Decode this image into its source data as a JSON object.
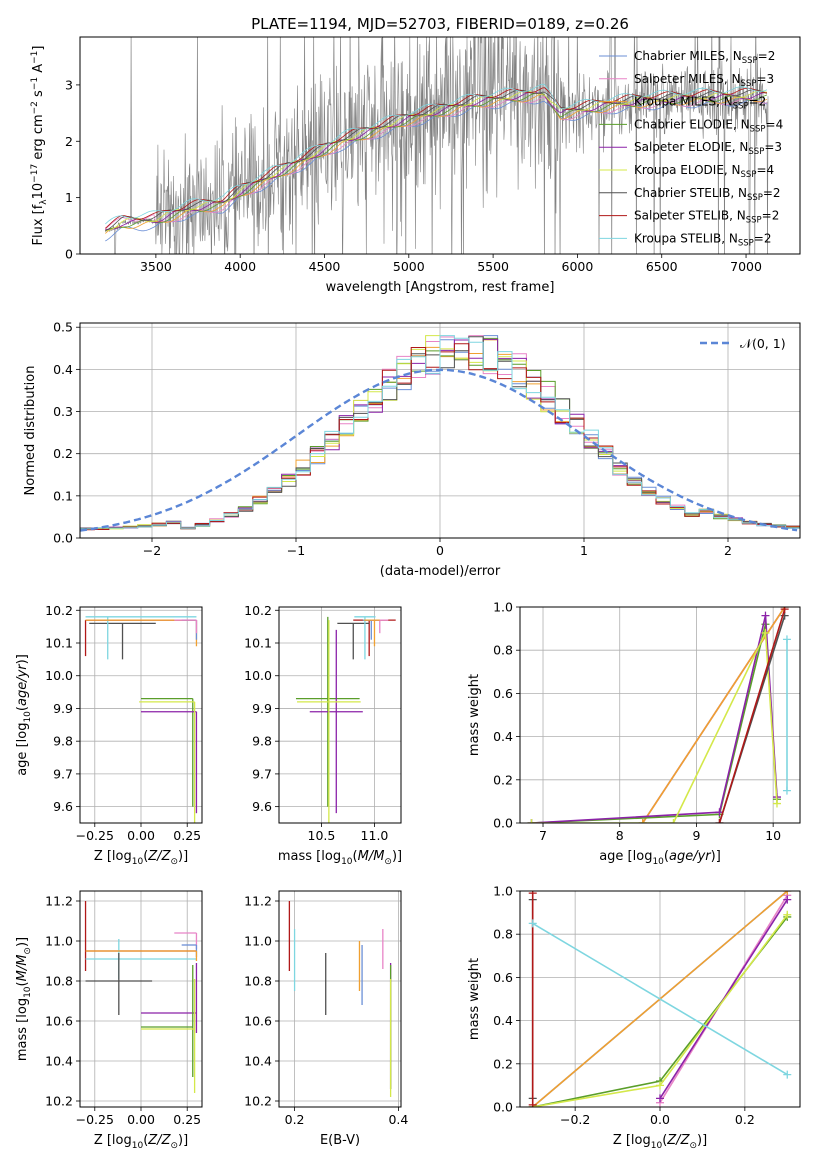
{
  "figure": {
    "title": "PLATE=1194, MJD=52703, FIBERID=0189, z=0.26"
  },
  "colors": {
    "Chabrier MILES": "#6b8fd6",
    "Salpeter MILES": "#e884c7",
    "Kroupa MILES": "#f0a030",
    "Chabrier ELODIE": "#5a9e2a",
    "Salpeter ELODIE": "#8b22a8",
    "Kroupa ELODIE": "#d4e84a",
    "Chabrier STELIB": "#505050",
    "Salpeter STELIB": "#b01818",
    "Kroupa STELIB": "#7ed6e0",
    "data": "#808080",
    "normal": "#5b86d6",
    "sumline_brown": "#c8763a"
  },
  "chart_data": [
    {
      "id": "spectrum",
      "type": "line",
      "xlabel": "wavelength [Angstrom, rest frame]",
      "ylabel": "Flux [f",
      "xlim": [
        3050,
        7320
      ],
      "ylim": [
        0,
        3.85
      ],
      "xticks": [
        3500,
        4000,
        4500,
        5000,
        5500,
        6000,
        6500,
        7000
      ],
      "yticks": [
        0,
        1,
        2,
        3
      ],
      "legend": {
        "placement": "top-right",
        "entries": [
          {
            "model": "Chabrier MILES",
            "label": "Chabrier MILES, N",
            "n": "=2"
          },
          {
            "model": "Salpeter MILES",
            "label": "Salpeter MILES, N",
            "n": "=3"
          },
          {
            "model": "Kroupa MILES",
            "label": "Kroupa MILES, N",
            "n": "=2"
          },
          {
            "model": "Chabrier ELODIE",
            "label": "Chabrier ELODIE, N",
            "n": "=4"
          },
          {
            "model": "Salpeter ELODIE",
            "label": "Salpeter ELODIE, N",
            "n": "=3"
          },
          {
            "model": "Kroupa ELODIE",
            "label": "Kroupa ELODIE, N",
            "n": "=4"
          },
          {
            "model": "Chabrier STELIB",
            "label": "Chabrier STELIB, N",
            "n": "=2"
          },
          {
            "model": "Salpeter STELIB",
            "label": "Salpeter STELIB, N",
            "n": "=2"
          },
          {
            "model": "Kroupa STELIB",
            "label": "Kroupa STELIB, N",
            "n": "=2"
          }
        ]
      },
      "continuum_knots": [
        [
          3200,
          0.4
        ],
        [
          3300,
          0.55
        ],
        [
          3500,
          0.6
        ],
        [
          3700,
          0.8
        ],
        [
          3900,
          0.9
        ],
        [
          4000,
          1.1
        ],
        [
          4200,
          1.4
        ],
        [
          4400,
          1.7
        ],
        [
          4600,
          2.0
        ],
        [
          4800,
          2.2
        ],
        [
          5000,
          2.4
        ],
        [
          5200,
          2.55
        ],
        [
          5400,
          2.7
        ],
        [
          5600,
          2.78
        ],
        [
          5800,
          2.85
        ],
        [
          5900,
          2.5
        ],
        [
          6000,
          2.55
        ],
        [
          6200,
          2.65
        ],
        [
          6400,
          2.72
        ],
        [
          6600,
          2.75
        ],
        [
          6800,
          2.78
        ],
        [
          7000,
          2.8
        ],
        [
          7130,
          2.82
        ]
      ],
      "grid": false
    },
    {
      "id": "residuals",
      "type": "histogram",
      "xlabel": "(data-model)/error",
      "ylabel": "Normed distribution",
      "xlim": [
        -2.5,
        2.5
      ],
      "ylim": [
        0,
        0.51
      ],
      "xticks": [
        -2,
        -1,
        0,
        1,
        2
      ],
      "yticks": [
        0,
        0.1,
        0.2,
        0.3,
        0.4,
        0.5
      ],
      "bin_width": 0.1,
      "legend": {
        "placement": "top-right",
        "label": "𝒩(0, 1)"
      },
      "normal_curve": {
        "mean": 0,
        "sigma": 1
      },
      "grid": true
    },
    {
      "id": "age_vs_Z",
      "type": "errorbar",
      "xlabel": "Z [log",
      "ylabel": "age  [log",
      "xlim": [
        -0.33,
        0.33
      ],
      "ylim": [
        9.55,
        10.21
      ],
      "xticks": [
        -0.25,
        0,
        0.25
      ],
      "yticks": [
        9.6,
        9.7,
        9.8,
        9.9,
        10.0,
        10.1,
        10.2
      ],
      "points": [
        {
          "model": "Salpeter STELIB",
          "x": -0.3,
          "y": 10.17,
          "xerr": [
            0.0,
            0.6
          ],
          "yerr": [
            0.11,
            0.0
          ]
        },
        {
          "model": "Chabrier STELIB",
          "x": -0.1,
          "y": 10.16,
          "xerr": [
            0.18,
            0.18
          ],
          "yerr": [
            0.11,
            0.0
          ]
        },
        {
          "model": "Kroupa STELIB",
          "x": -0.18,
          "y": 10.18,
          "xerr": [
            0.12,
            0.48
          ],
          "yerr": [
            0.13,
            0.0
          ]
        },
        {
          "model": "Kroupa MILES",
          "x": 0.3,
          "y": 10.17,
          "xerr": [
            0.6,
            0.0
          ],
          "yerr": [
            0.08,
            0.0
          ]
        },
        {
          "model": "Chabrier MILES",
          "x": 0.3,
          "y": 10.17,
          "xerr": [
            0.08,
            0.0
          ],
          "yerr": [
            0.06,
            0.0
          ]
        },
        {
          "model": "Salpeter MILES",
          "x": 0.3,
          "y": 10.17,
          "xerr": [
            0.12,
            0.0
          ],
          "yerr": [
            0.04,
            0.0
          ]
        },
        {
          "model": "Chabrier ELODIE",
          "x": 0.28,
          "y": 9.93,
          "xerr": [
            0.28,
            0.0
          ],
          "yerr": [
            0.33,
            0.0
          ]
        },
        {
          "model": "Salpeter ELODIE",
          "x": 0.3,
          "y": 9.89,
          "xerr": [
            0.3,
            0.0
          ],
          "yerr": [
            0.31,
            0.0
          ]
        },
        {
          "model": "Kroupa ELODIE",
          "x": 0.29,
          "y": 9.92,
          "xerr": [
            0.3,
            0.0
          ],
          "yerr": [
            0.38,
            0.0
          ]
        }
      ],
      "grid": true
    },
    {
      "id": "age_vs_mass",
      "type": "errorbar",
      "xlabel": "mass [log",
      "ylabel": "",
      "xlim": [
        10.1,
        11.25
      ],
      "ylim": [
        9.55,
        10.21
      ],
      "xticks": [
        10.5,
        11.0
      ],
      "yticks": [
        9.6,
        9.7,
        9.8,
        9.9,
        10.0,
        10.1,
        10.2
      ],
      "points": [
        {
          "model": "Salpeter STELIB",
          "x": 10.95,
          "y": 10.17,
          "xerr": [
            0.15,
            0.25
          ],
          "yerr": [
            0.11,
            0.0
          ]
        },
        {
          "model": "Chabrier STELIB",
          "x": 10.8,
          "y": 10.16,
          "xerr": [
            0.15,
            0.15
          ],
          "yerr": [
            0.11,
            0.0
          ]
        },
        {
          "model": "Kroupa STELIB",
          "x": 10.91,
          "y": 10.18,
          "xerr": [
            0.1,
            0.1
          ],
          "yerr": [
            0.13,
            0.0
          ]
        },
        {
          "model": "Chabrier MILES",
          "x": 10.97,
          "y": 10.17,
          "xerr": [
            0.08,
            0.08
          ],
          "yerr": [
            0.06,
            0.0
          ]
        },
        {
          "model": "Salpeter MILES",
          "x": 11.05,
          "y": 10.17,
          "xerr": [
            0.08,
            0.08
          ],
          "yerr": [
            0.04,
            0.0
          ]
        },
        {
          "model": "Kroupa MILES",
          "x": 11.0,
          "y": 10.17,
          "xerr": [
            0.1,
            0.05
          ],
          "yerr": [
            0.08,
            0.0
          ]
        },
        {
          "model": "Chabrier ELODIE",
          "x": 10.56,
          "y": 9.93,
          "xerr": [
            0.3,
            0.3
          ],
          "yerr": [
            0.33,
            0.25
          ]
        },
        {
          "model": "Salpeter ELODIE",
          "x": 10.64,
          "y": 9.89,
          "xerr": [
            0.25,
            0.25
          ],
          "yerr": [
            0.31,
            0.25
          ]
        },
        {
          "model": "Kroupa ELODIE",
          "x": 10.57,
          "y": 9.92,
          "xerr": [
            0.3,
            0.3
          ],
          "yerr": [
            0.38,
            0.25
          ]
        }
      ],
      "grid": true
    },
    {
      "id": "massweight_vs_age",
      "type": "line",
      "xlabel": "age  [log",
      "ylabel": "mass weight",
      "xlim": [
        6.7,
        10.35
      ],
      "ylim": [
        0,
        1.0
      ],
      "xticks": [
        7,
        8,
        9,
        10
      ],
      "yticks": [
        0.0,
        0.2,
        0.4,
        0.6,
        0.8,
        1.0
      ],
      "series": [
        {
          "model": "Chabrier MILES",
          "x": [
            8.3,
            10.15
          ],
          "y": [
            0.0,
            1.0
          ]
        },
        {
          "model": "Salpeter MILES",
          "x": [
            8.3,
            10.15
          ],
          "y": [
            0.0,
            1.0
          ]
        },
        {
          "model": "Kroupa MILES",
          "x": [
            8.3,
            10.15
          ],
          "y": [
            0.0,
            1.0
          ]
        },
        {
          "model": "Chabrier ELODIE",
          "x": [
            6.85,
            9.3,
            9.9,
            10.05
          ],
          "y": [
            0.0,
            0.04,
            0.92,
            0.11
          ]
        },
        {
          "model": "Salpeter ELODIE",
          "x": [
            6.85,
            9.3,
            9.9,
            10.05
          ],
          "y": [
            0.0,
            0.05,
            0.96,
            0.12
          ]
        },
        {
          "model": "Kroupa ELODIE",
          "x": [
            6.85,
            8.7,
            9.9,
            10.05
          ],
          "y": [
            0.0,
            0.0,
            0.88,
            0.09
          ]
        },
        {
          "model": "Chabrier STELIB",
          "x": [
            9.3,
            10.15
          ],
          "y": [
            0.0,
            0.96
          ]
        },
        {
          "model": "Salpeter STELIB",
          "x": [
            9.3,
            10.15
          ],
          "y": [
            0.0,
            0.99
          ]
        },
        {
          "model": "Kroupa STELIB",
          "x": [
            10.18,
            10.18
          ],
          "y": [
            0.15,
            0.85
          ]
        }
      ],
      "grid": true
    },
    {
      "id": "mass_vs_Z",
      "type": "errorbar",
      "xlabel": "Z [log",
      "ylabel": "mass [log",
      "xlim": [
        -0.33,
        0.33
      ],
      "ylim": [
        10.17,
        11.25
      ],
      "xticks": [
        -0.25,
        0,
        0.25
      ],
      "yticks": [
        10.2,
        10.4,
        10.6,
        10.8,
        11.0,
        11.2
      ],
      "points": [
        {
          "model": "Salpeter STELIB",
          "x": -0.3,
          "y": 10.95,
          "xerr": [
            0.0,
            0.6
          ],
          "yerr": [
            0.1,
            0.25
          ]
        },
        {
          "model": "Kroupa STELIB",
          "x": -0.12,
          "y": 10.91,
          "xerr": [
            0.18,
            0.42
          ],
          "yerr": [
            0.1,
            0.1
          ]
        },
        {
          "model": "Chabrier STELIB",
          "x": -0.12,
          "y": 10.8,
          "xerr": [
            0.18,
            0.18
          ],
          "yerr": [
            0.17,
            0.14
          ]
        },
        {
          "model": "Salpeter MILES",
          "x": 0.3,
          "y": 11.04,
          "xerr": [
            0.12,
            0.0
          ],
          "yerr": [
            0.08,
            0.0
          ]
        },
        {
          "model": "Chabrier MILES",
          "x": 0.3,
          "y": 10.98,
          "xerr": [
            0.08,
            0.0
          ],
          "yerr": [
            0.06,
            0.0
          ]
        },
        {
          "model": "Kroupa MILES",
          "x": 0.3,
          "y": 10.95,
          "xerr": [
            0.6,
            0.0
          ],
          "yerr": [
            0.05,
            0.0
          ]
        },
        {
          "model": "Salpeter ELODIE",
          "x": 0.3,
          "y": 10.64,
          "xerr": [
            0.3,
            0.0
          ],
          "yerr": [
            0.1,
            0.25
          ]
        },
        {
          "model": "Chabrier ELODIE",
          "x": 0.28,
          "y": 10.57,
          "xerr": [
            0.28,
            0.0
          ],
          "yerr": [
            0.25,
            0.31
          ]
        },
        {
          "model": "Kroupa ELODIE",
          "x": 0.29,
          "y": 10.56,
          "xerr": [
            0.29,
            0.0
          ],
          "yerr": [
            0.32,
            0.25
          ]
        }
      ],
      "grid": true
    },
    {
      "id": "mass_vs_ebv",
      "type": "errorbar",
      "xlabel": "E(B-V)",
      "ylabel": "",
      "xlim": [
        0.17,
        0.405
      ],
      "ylim": [
        10.17,
        11.25
      ],
      "xticks": [
        0.2,
        0.4
      ],
      "yticks": [
        10.2,
        10.4,
        10.6,
        10.8,
        11.0,
        11.2
      ],
      "points": [
        {
          "model": "Salpeter STELIB",
          "x": 0.19,
          "y": 10.95,
          "xerr": [
            0.0,
            0.0
          ],
          "yerr": [
            0.1,
            0.25
          ]
        },
        {
          "model": "Kroupa STELIB",
          "x": 0.2,
          "y": 10.91,
          "xerr": [
            0.0,
            0.0
          ],
          "yerr": [
            0.16,
            0.15
          ]
        },
        {
          "model": "Chabrier STELIB",
          "x": 0.26,
          "y": 10.8,
          "xerr": [
            0.0,
            0.0
          ],
          "yerr": [
            0.17,
            0.14
          ]
        },
        {
          "model": "Kroupa MILES",
          "x": 0.325,
          "y": 10.95,
          "xerr": [
            0.0,
            0.0
          ],
          "yerr": [
            0.2,
            0.05
          ]
        },
        {
          "model": "Chabrier MILES",
          "x": 0.33,
          "y": 10.85,
          "xerr": [
            0.0,
            0.0
          ],
          "yerr": [
            0.17,
            0.13
          ]
        },
        {
          "model": "Salpeter MILES",
          "x": 0.37,
          "y": 10.98,
          "xerr": [
            0.0,
            0.0
          ],
          "yerr": [
            0.12,
            0.08
          ]
        },
        {
          "model": "Salpeter ELODIE",
          "x": 0.385,
          "y": 10.64,
          "xerr": [
            0.0,
            0.0
          ],
          "yerr": [
            0.38,
            0.25
          ]
        },
        {
          "model": "Chabrier ELODIE",
          "x": 0.385,
          "y": 10.57,
          "xerr": [
            0.0,
            0.0
          ],
          "yerr": [
            0.31,
            0.31
          ]
        },
        {
          "model": "Kroupa ELODIE",
          "x": 0.385,
          "y": 10.56,
          "xerr": [
            0.0,
            0.0
          ],
          "yerr": [
            0.34,
            0.25
          ]
        }
      ],
      "grid": true
    },
    {
      "id": "massweight_vs_Z",
      "type": "line",
      "xlabel": "Z [log",
      "ylabel": "mass weight",
      "xlim": [
        -0.33,
        0.33
      ],
      "ylim": [
        0,
        1.0
      ],
      "xticks": [
        -0.2,
        0.0,
        0.2
      ],
      "yticks": [
        0.0,
        0.2,
        0.4,
        0.6,
        0.8,
        1.0
      ],
      "series": [
        {
          "model": "Chabrier MILES",
          "x": [
            -0.3,
            0.3
          ],
          "y": [
            0.0,
            1.0
          ]
        },
        {
          "model": "Salpeter MILES",
          "x": [
            0.0,
            0.3
          ],
          "y": [
            0.02,
            0.98
          ]
        },
        {
          "model": "Kroupa MILES",
          "x": [
            -0.3,
            0.3
          ],
          "y": [
            0.0,
            1.0
          ]
        },
        {
          "model": "Chabrier ELODIE",
          "x": [
            -0.3,
            0.0,
            0.3
          ],
          "y": [
            0.0,
            0.12,
            0.88
          ]
        },
        {
          "model": "Salpeter ELODIE",
          "x": [
            0.0,
            0.3
          ],
          "y": [
            0.04,
            0.96
          ]
        },
        {
          "model": "Kroupa ELODIE",
          "x": [
            -0.3,
            0.0,
            0.3
          ],
          "y": [
            0.0,
            0.1,
            0.89
          ]
        },
        {
          "model": "Chabrier STELIB",
          "x": [
            -0.3,
            -0.3
          ],
          "y": [
            0.04,
            0.96
          ]
        },
        {
          "model": "Salpeter STELIB",
          "x": [
            -0.3,
            -0.3
          ],
          "y": [
            0.01,
            0.99
          ]
        },
        {
          "model": "Kroupa STELIB",
          "x": [
            -0.3,
            0.3
          ],
          "y": [
            0.85,
            0.15
          ]
        }
      ],
      "grid": true
    }
  ]
}
